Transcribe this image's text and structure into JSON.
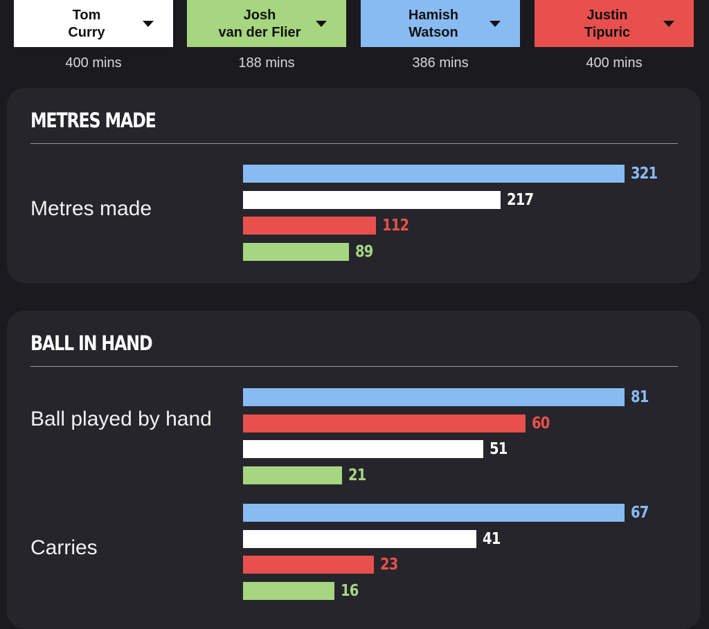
{
  "colors": {
    "background": "#1a1a1f",
    "card": "#25252b",
    "curry": "#ffffff",
    "van_der_flier": "#a6d67f",
    "watson": "#88bbf2",
    "tipuric": "#e8504d"
  },
  "players": [
    {
      "id": "curry",
      "name": "Tom\nCurry",
      "mins": "400 mins",
      "color": "#ffffff",
      "icon": "chevron-down-icon"
    },
    {
      "id": "van_der_flier",
      "name": "Josh\nvan der Flier",
      "mins": "188 mins",
      "color": "#a6d67f",
      "icon": "chevron-down-icon"
    },
    {
      "id": "watson",
      "name": "Hamish\nWatson",
      "mins": "386 mins",
      "color": "#88bbf2",
      "icon": "chevron-down-icon"
    },
    {
      "id": "tipuric",
      "name": "Justin\nTipuric",
      "mins": "400 mins",
      "color": "#e8504d",
      "icon": "chevron-down-icon"
    }
  ],
  "sections": [
    {
      "title": "METRES MADE",
      "stats": [
        {
          "label": "Metres made",
          "max": 321,
          "bars": [
            {
              "player": "watson",
              "value": 321
            },
            {
              "player": "curry",
              "value": 217
            },
            {
              "player": "tipuric",
              "value": 112
            },
            {
              "player": "van_der_flier",
              "value": 89
            }
          ]
        }
      ]
    },
    {
      "title": "BALL IN HAND",
      "stats": [
        {
          "label": "Ball played by hand",
          "max": 81,
          "bars": [
            {
              "player": "watson",
              "value": 81
            },
            {
              "player": "tipuric",
              "value": 60
            },
            {
              "player": "curry",
              "value": 51
            },
            {
              "player": "van_der_flier",
              "value": 21
            }
          ]
        },
        {
          "label": "Carries",
          "max": 67,
          "bars": [
            {
              "player": "watson",
              "value": 67
            },
            {
              "player": "curry",
              "value": 41
            },
            {
              "player": "tipuric",
              "value": 23
            },
            {
              "player": "van_der_flier",
              "value": 16
            }
          ]
        }
      ]
    }
  ]
}
